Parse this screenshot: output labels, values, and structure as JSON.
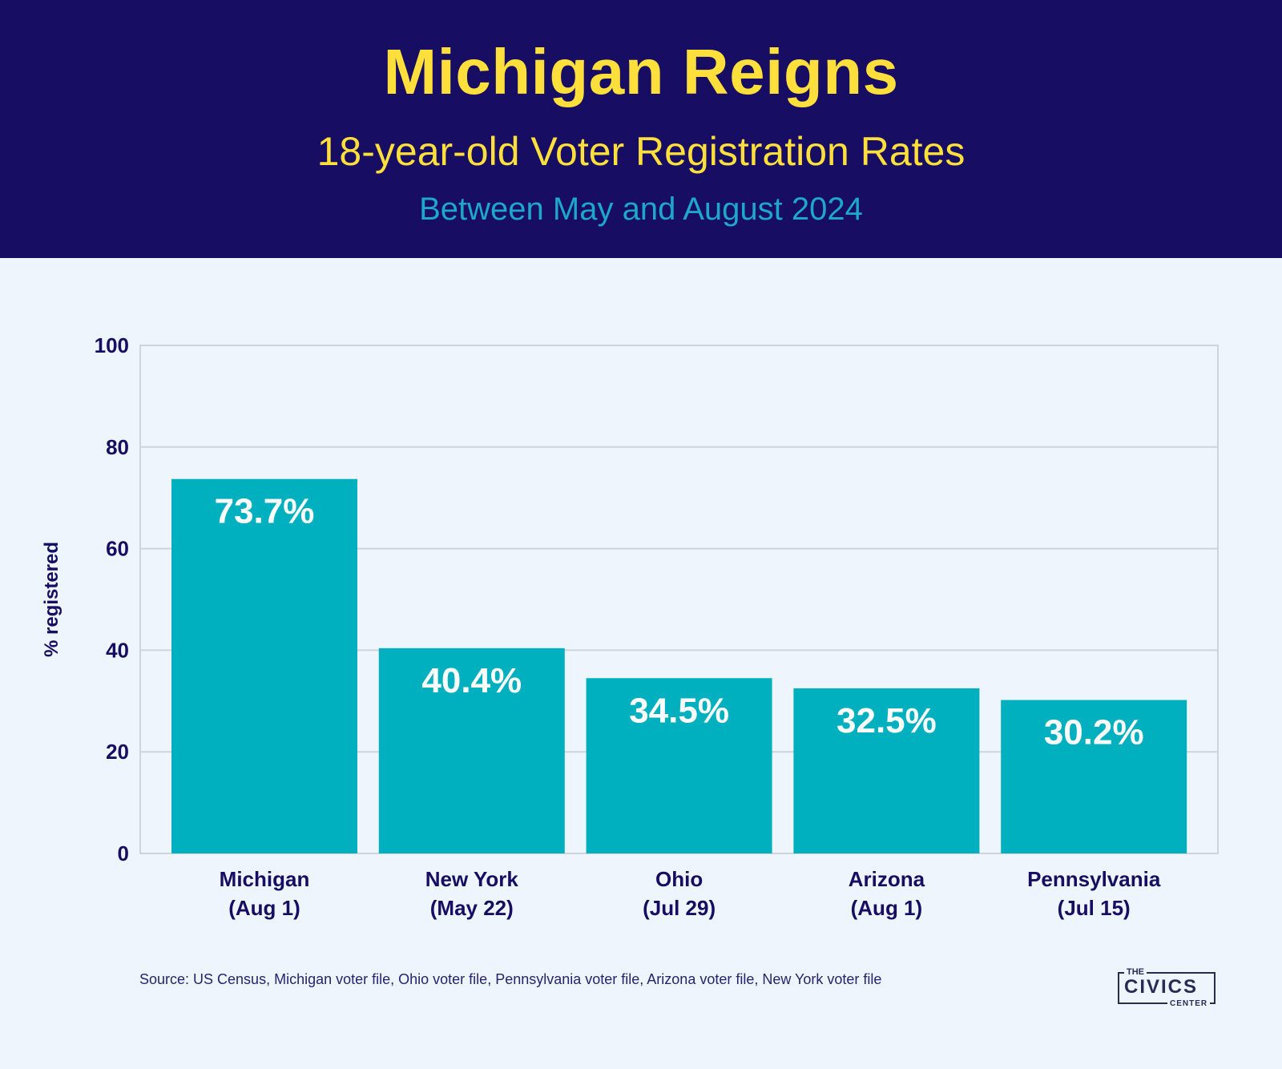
{
  "header": {
    "title": "Michigan Reigns",
    "subtitle": "18-year-old Voter Registration Rates",
    "period": "Between May and August 2024"
  },
  "chart_data": {
    "type": "bar",
    "title": "Michigan Reigns",
    "subtitle": "18-year-old Voter Registration Rates",
    "xlabel": "",
    "ylabel": "% registered",
    "ylim": [
      0,
      100
    ],
    "yticks": [
      0,
      20,
      40,
      60,
      80,
      100
    ],
    "grid": true,
    "categories": [
      {
        "name": "Michigan",
        "date": "(Aug 1)"
      },
      {
        "name": "New York",
        "date": "(May 22)"
      },
      {
        "name": "Ohio",
        "date": "(Jul 29)"
      },
      {
        "name": "Arizona",
        "date": "(Aug 1)"
      },
      {
        "name": "Pennsylvania",
        "date": "(Jul 15)"
      }
    ],
    "values": [
      73.7,
      40.4,
      34.5,
      32.5,
      30.2
    ],
    "value_labels": [
      "73.7%",
      "40.4%",
      "34.5%",
      "32.5%",
      "30.2%"
    ],
    "bar_color": "#00b0bf"
  },
  "footer": {
    "source": "Source: US Census, Michigan voter file, Ohio voter file, Pennsylvania voter file, Arizona voter file, New York voter file",
    "logo_the": "THE",
    "logo_civics": "CIVICS",
    "logo_center": "CENTER"
  }
}
